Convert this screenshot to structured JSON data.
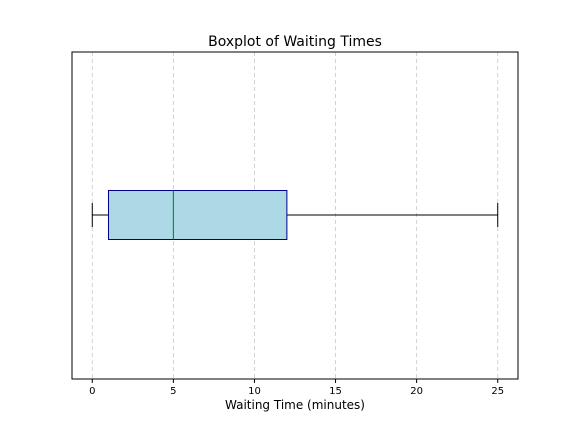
{
  "chart_data": {
    "type": "boxplot",
    "orientation": "horizontal",
    "title": "Boxplot of Waiting Times",
    "xlabel": "Waiting Time (minutes)",
    "ylabel": "",
    "xlim": [
      -1.25,
      26.25
    ],
    "xticks": [
      0,
      5,
      10,
      15,
      20,
      25
    ],
    "grid": "x-dashed",
    "stats": {
      "whisker_low": 0,
      "q1": 1,
      "median": 5,
      "q3": 12,
      "whisker_high": 25
    },
    "colors": {
      "box_fill": "#add8e6",
      "box_edge": "#00008b",
      "median": "#008000",
      "whisker": "#000000",
      "grid": "#c8c8c8"
    }
  }
}
